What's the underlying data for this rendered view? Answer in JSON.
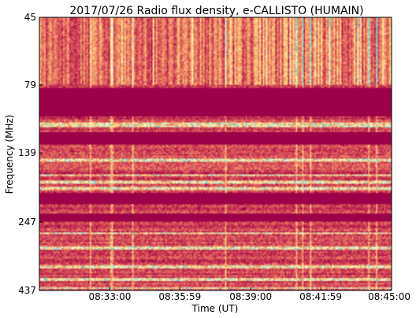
{
  "chart_data": {
    "type": "heatmap",
    "title": "2017/07/26  Radio flux density, e-CALLISTO (HUMAIN)",
    "xlabel": "Time (UT)",
    "ylabel": "Frequency (MHz)",
    "x_ticks": [
      "08:33:00",
      "08:35:59",
      "08:39:00",
      "08:41:59",
      "08:45:00"
    ],
    "y_ticks": [
      "45",
      "79",
      "139",
      "247",
      "437"
    ],
    "x_range": [
      "08:30:00",
      "08:45:00"
    ],
    "y_range_mhz": [
      45,
      437
    ],
    "y_scale": "log",
    "y_inverted": true,
    "grid": false,
    "colormap": [
      "#9b0048",
      "#b51d4e",
      "#cc3d55",
      "#e0655d",
      "#ee8c66",
      "#f6b474",
      "#fbd889",
      "#fdf3b0",
      "#c6ecd9",
      "#7fd7c4"
    ],
    "saturated_bands_mhz": [
      [
        81,
        103
      ],
      [
        117,
        130
      ],
      [
        195,
        212
      ],
      [
        230,
        246
      ]
    ],
    "bright_bands_mhz": [
      [
        108,
        112
      ],
      [
        145,
        150
      ],
      [
        166,
        168
      ],
      [
        176,
        180
      ],
      [
        185,
        190
      ],
      [
        268,
        273
      ],
      [
        305,
        310
      ],
      [
        355,
        362
      ],
      [
        395,
        403
      ],
      [
        424,
        432
      ]
    ],
    "burst_region_mhz": [
      45,
      79
    ]
  }
}
